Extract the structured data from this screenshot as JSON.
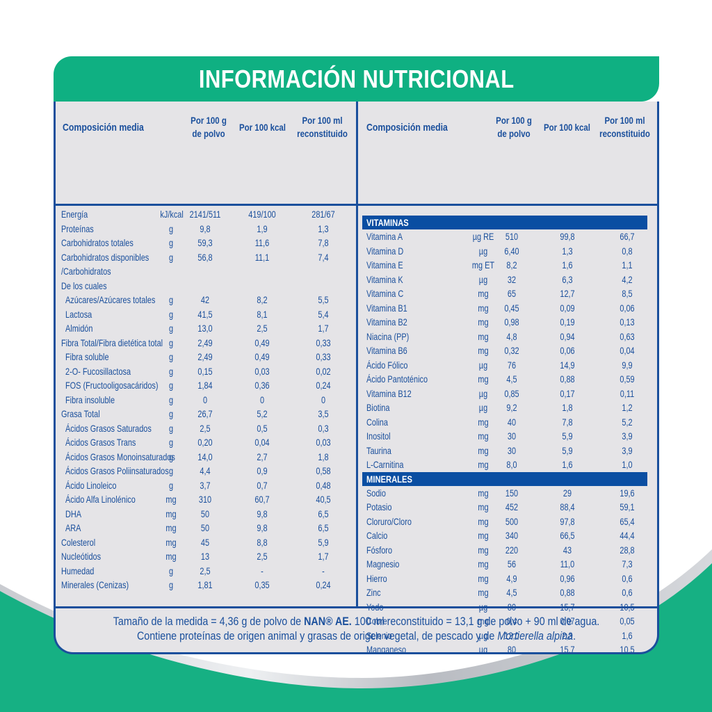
{
  "title": "INFORMACIÓN NUTRICIONAL",
  "colors": {
    "green": "#0fb082",
    "blue": "#1a4f9c",
    "section_blue": "#0a4ea2",
    "panel": "#e5e4e7"
  },
  "headers": {
    "label": "Composición media",
    "col1_line1": "Por 100 g",
    "col1_line2": "de polvo",
    "col2": "Por 100 kcal",
    "col3_line1": "Por 100 ml",
    "col3_line2": "reconstituido"
  },
  "left": {
    "rows": [
      {
        "name": "Energía",
        "unit": "kJ/kcal",
        "v1": "2141/511",
        "v2": "419/100",
        "v3": "281/67",
        "indent": 0
      },
      {
        "name": "Proteínas",
        "unit": "g",
        "v1": "9,8",
        "v2": "1,9",
        "v3": "1,3",
        "indent": 0
      },
      {
        "name": "Carbohidratos totales",
        "unit": "g",
        "v1": "59,3",
        "v2": "11,6",
        "v3": "7,8",
        "indent": 0
      },
      {
        "name": "Carbohidratos disponibles",
        "unit": "g",
        "v1": "56,8",
        "v2": "11,1",
        "v3": "7,4",
        "indent": 0
      },
      {
        "name": "/Carbohidratos",
        "unit": "",
        "v1": "",
        "v2": "",
        "v3": "",
        "indent": 0
      },
      {
        "name": "De los cuales",
        "unit": "",
        "v1": "",
        "v2": "",
        "v3": "",
        "indent": 0
      },
      {
        "name": "Azúcares/Azúcares totales",
        "unit": "g",
        "v1": "42",
        "v2": "8,2",
        "v3": "5,5",
        "indent": 1
      },
      {
        "name": "Lactosa",
        "unit": "g",
        "v1": "41,5",
        "v2": "8,1",
        "v3": "5,4",
        "indent": 1
      },
      {
        "name": "Almidón",
        "unit": "g",
        "v1": "13,0",
        "v2": "2,5",
        "v3": "1,7",
        "indent": 1
      },
      {
        "name": "Fibra Total/Fibra dietética total",
        "unit": "g",
        "v1": "2,49",
        "v2": "0,49",
        "v3": "0,33",
        "indent": 0
      },
      {
        "name": "Fibra soluble",
        "unit": "g",
        "v1": "2,49",
        "v2": "0,49",
        "v3": "0,33",
        "indent": 1
      },
      {
        "name": "2-O- Fucosillactosa",
        "unit": "g",
        "v1": "0,15",
        "v2": "0,03",
        "v3": "0,02",
        "indent": 1
      },
      {
        "name": "FOS (Fructooligosacáridos)",
        "unit": "g",
        "v1": "1,84",
        "v2": "0,36",
        "v3": "0,24",
        "indent": 1
      },
      {
        "name": "Fibra insoluble",
        "unit": "g",
        "v1": "0",
        "v2": "0",
        "v3": "0",
        "indent": 1
      },
      {
        "name": "Grasa Total",
        "unit": "g",
        "v1": "26,7",
        "v2": "5,2",
        "v3": "3,5",
        "indent": 0
      },
      {
        "name": "Ácidos Grasos Saturados",
        "unit": "g",
        "v1": "2,5",
        "v2": "0,5",
        "v3": "0,3",
        "indent": 1
      },
      {
        "name": "Ácidos Grasos Trans",
        "unit": "g",
        "v1": "0,20",
        "v2": "0,04",
        "v3": "0,03",
        "indent": 1
      },
      {
        "name": "Ácidos Grasos Monoinsaturados",
        "unit": "g",
        "v1": "14,0",
        "v2": "2,7",
        "v3": "1,8",
        "indent": 1
      },
      {
        "name": "Ácidos Grasos Poliinsaturados",
        "unit": "g",
        "v1": "4,4",
        "v2": "0,9",
        "v3": "0,58",
        "indent": 1
      },
      {
        "name": "Ácido Linoleico",
        "unit": "g",
        "v1": "3,7",
        "v2": "0,7",
        "v3": "0,48",
        "indent": 1
      },
      {
        "name": "Ácido Alfa Linolénico",
        "unit": "mg",
        "v1": "310",
        "v2": "60,7",
        "v3": "40,5",
        "indent": 1
      },
      {
        "name": "DHA",
        "unit": "mg",
        "v1": "50",
        "v2": "9,8",
        "v3": "6,5",
        "indent": 1
      },
      {
        "name": "ARA",
        "unit": "mg",
        "v1": "50",
        "v2": "9,8",
        "v3": "6,5",
        "indent": 1
      },
      {
        "name": "Colesterol",
        "unit": "mg",
        "v1": "45",
        "v2": "8,8",
        "v3": "5,9",
        "indent": 0
      },
      {
        "name": "Nucleótidos",
        "unit": "mg",
        "v1": "13",
        "v2": "2,5",
        "v3": "1,7",
        "indent": 0
      },
      {
        "name": "Humedad",
        "unit": "g",
        "v1": "2,5",
        "v2": "-",
        "v3": "-",
        "indent": 0
      },
      {
        "name": "Minerales (Cenizas)",
        "unit": "g",
        "v1": "1,81",
        "v2": "0,35",
        "v3": "0,24",
        "indent": 0
      }
    ]
  },
  "right": {
    "vitaminas_label": "VITAMINAS",
    "vitaminas": [
      {
        "name": "Vitamina A",
        "unit": "µg RE",
        "v1": "510",
        "v2": "99,8",
        "v3": "66,7"
      },
      {
        "name": "Vitamina D",
        "unit": "µg",
        "v1": "6,40",
        "v2": "1,3",
        "v3": "0,8"
      },
      {
        "name": "Vitamina E",
        "unit": "mg ET",
        "v1": "8,2",
        "v2": "1,6",
        "v3": "1,1"
      },
      {
        "name": "Vitamina K",
        "unit": "µg",
        "v1": "32",
        "v2": "6,3",
        "v3": "4,2"
      },
      {
        "name": "Vitamina C",
        "unit": "mg",
        "v1": "65",
        "v2": "12,7",
        "v3": "8,5"
      },
      {
        "name": "Vitamina B1",
        "unit": "mg",
        "v1": "0,45",
        "v2": "0,09",
        "v3": "0,06"
      },
      {
        "name": "Vitamina B2",
        "unit": "mg",
        "v1": "0,98",
        "v2": "0,19",
        "v3": "0,13"
      },
      {
        "name": "Niacina (PP)",
        "unit": "mg",
        "v1": "4,8",
        "v2": "0,94",
        "v3": "0,63"
      },
      {
        "name": "Vitamina B6",
        "unit": "mg",
        "v1": "0,32",
        "v2": "0,06",
        "v3": "0,04"
      },
      {
        "name": "Ácido Fólico",
        "unit": "µg",
        "v1": "76",
        "v2": "14,9",
        "v3": "9,9"
      },
      {
        "name": "Ácido Pantoténico",
        "unit": "mg",
        "v1": "4,5",
        "v2": "0,88",
        "v3": "0,59"
      },
      {
        "name": "Vitamina B12",
        "unit": "µg",
        "v1": "0,85",
        "v2": "0,17",
        "v3": "0,11"
      },
      {
        "name": "Biotina",
        "unit": "µg",
        "v1": "9,2",
        "v2": "1,8",
        "v3": "1,2"
      },
      {
        "name": "Colina",
        "unit": "mg",
        "v1": "40",
        "v2": "7,8",
        "v3": "5,2"
      },
      {
        "name": "Inositol",
        "unit": "mg",
        "v1": "30",
        "v2": "5,9",
        "v3": "3,9"
      },
      {
        "name": "Taurina",
        "unit": "mg",
        "v1": "30",
        "v2": "5,9",
        "v3": "3,9"
      },
      {
        "name": "L-Carnitina",
        "unit": "mg",
        "v1": "8,0",
        "v2": "1,6",
        "v3": "1,0"
      }
    ],
    "minerales_label": "MINERALES",
    "minerales": [
      {
        "name": "Sodio",
        "unit": "mg",
        "v1": "150",
        "v2": "29",
        "v3": "19,6"
      },
      {
        "name": "Potasio",
        "unit": "mg",
        "v1": "452",
        "v2": "88,4",
        "v3": "59,1"
      },
      {
        "name": "Cloruro/Cloro",
        "unit": "mg",
        "v1": "500",
        "v2": "97,8",
        "v3": "65,4"
      },
      {
        "name": "Calcio",
        "unit": "mg",
        "v1": "340",
        "v2": "66,5",
        "v3": "44,4"
      },
      {
        "name": "Fósforo",
        "unit": "mg",
        "v1": "220",
        "v2": "43",
        "v3": "28,8"
      },
      {
        "name": "Magnesio",
        "unit": "mg",
        "v1": "56",
        "v2": "11,0",
        "v3": "7,3"
      },
      {
        "name": "Hierro",
        "unit": "mg",
        "v1": "4,9",
        "v2": "0,96",
        "v3": "0,6"
      },
      {
        "name": "Zinc",
        "unit": "mg",
        "v1": "4,5",
        "v2": "0,88",
        "v3": "0,6"
      },
      {
        "name": "Yodo",
        "unit": "µg",
        "v1": "80",
        "v2": "15,7",
        "v3": "10,5"
      },
      {
        "name": "Cobre",
        "unit": "mg",
        "v1": "0,4",
        "v2": "0,07",
        "v3": "0,05"
      },
      {
        "name": "Selenio",
        "unit": "µg",
        "v1": "12,0",
        "v2": "2,3",
        "v3": "1,6"
      },
      {
        "name": "Manganeso",
        "unit": "µg",
        "v1": "80",
        "v2": "15,7",
        "v3": "10,5"
      }
    ]
  },
  "footer": {
    "line1_pre": "Tamaño de la medida = 4,36 g de polvo de ",
    "line1_brand": "NAN® AE.",
    "line1_post": " 100 ml reconstituido = 13,1 g de polvo + 90 ml de agua.",
    "line2_pre": "Contiene proteínas de origen animal y grasas de origen vegetal, de pescado y de ",
    "line2_italic": "Mortierella alpina",
    "line2_post": "."
  }
}
